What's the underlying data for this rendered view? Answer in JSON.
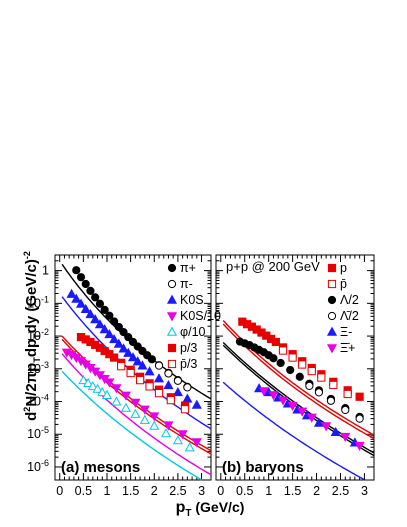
{
  "chart_data": [
    {
      "type": "scatter",
      "panel_label": "(a) mesons",
      "xlabel": "p_T (GeV/c)",
      "ylabel": "d²N/2πp_T dp_T dy  (GeV/c)^-2",
      "xlim": [
        -0.1,
        3.2
      ],
      "ylim": [
        4e-07,
        3
      ],
      "log_y": true,
      "x_ticks": [
        "0",
        "0.5",
        "1",
        "1.5",
        "2",
        "2.5",
        "3"
      ],
      "y_ticks": [
        "1",
        "10^-1",
        "10^-2",
        "10^-3",
        "10^-4",
        "10^-5",
        "10^-6"
      ],
      "legend_position": "top-right",
      "series": [
        {
          "name": "π+",
          "marker": "circle",
          "filled": true,
          "color": "#000000",
          "curve": {
            "A": 2.0,
            "T": 0.2,
            "n": 10.5
          },
          "x": [
            0.35,
            0.45,
            0.55,
            0.65,
            0.75,
            0.85,
            0.95,
            1.05,
            1.15,
            1.25,
            1.35,
            1.45,
            1.55,
            1.65,
            1.75,
            1.85,
            1.95,
            2.1,
            2.3,
            2.5,
            2.7
          ],
          "y": [
            1.03,
            0.63,
            0.39,
            0.24,
            0.152,
            0.097,
            0.063,
            0.042,
            0.028,
            0.019,
            0.0132,
            0.0093,
            0.0066,
            0.0048,
            0.0035,
            0.0026,
            0.00195,
            0.00128,
            0.00075,
            0.00045,
            0.00028
          ]
        },
        {
          "name": "π-",
          "marker": "circle",
          "filled": false,
          "color": "#000000",
          "curve": null,
          "x": [
            2.1,
            2.3,
            2.5,
            2.7
          ],
          "y": [
            0.00125,
            0.00072,
            0.00043,
            0.00027
          ]
        },
        {
          "name": "K0S",
          "marker": "triangle-up",
          "filled": true,
          "color": "#1a1aff",
          "curve": {
            "A": 0.2,
            "T": 0.22,
            "n": 12
          },
          "x": [
            0.25,
            0.35,
            0.45,
            0.55,
            0.65,
            0.75,
            0.85,
            0.95,
            1.05,
            1.15,
            1.25,
            1.35,
            1.45,
            1.55,
            1.65,
            1.75,
            1.9,
            2.1,
            2.3,
            2.5,
            2.7,
            2.9
          ],
          "y": [
            0.19,
            0.135,
            0.095,
            0.066,
            0.046,
            0.032,
            0.0224,
            0.0158,
            0.0112,
            0.0079,
            0.0057,
            0.0041,
            0.003,
            0.0022,
            0.00165,
            0.00124,
            0.00082,
            0.0005,
            0.00031,
            0.00019,
            0.00012,
            7.8e-05
          ]
        },
        {
          "name": "K0S/10",
          "marker": "triangle-down",
          "filled": true,
          "color": "#e600e6",
          "curve": {
            "A": 0.0035,
            "T": 0.25,
            "n": 12
          },
          "x": [
            0.15,
            0.25,
            0.35,
            0.45,
            0.55,
            0.65,
            0.75,
            0.85,
            0.95,
            1.05,
            1.2,
            1.4,
            1.6,
            1.8,
            2.0,
            2.3,
            2.6,
            2.9
          ],
          "y": [
            0.0032,
            0.0027,
            0.0022,
            0.00175,
            0.00138,
            0.00108,
            0.00084,
            0.00065,
            0.0005,
            0.00039,
            0.00026,
            0.000155,
            9.4e-05,
            5.8e-05,
            3.6e-05,
            1.9e-05,
            1.02e-05,
            5.8e-06
          ]
        },
        {
          "name": "φ/10",
          "marker": "triangle-up",
          "filled": false,
          "color": "#00c8e6",
          "curve": {
            "A": 0.001,
            "T": 0.28,
            "n": 13
          },
          "x": [
            0.5,
            0.6,
            0.7,
            0.8,
            0.9,
            1.0,
            1.2,
            1.4,
            1.6,
            1.8,
            2.0,
            2.25,
            2.5,
            2.75
          ],
          "y": [
            0.00044,
            0.00036,
            0.00029,
            0.00024,
            0.00019,
            0.000155,
            9.8e-05,
            6.3e-05,
            4.1e-05,
            2.7e-05,
            1.78e-05,
            1.05e-05,
            6.4e-06,
            3.9e-06
          ]
        },
        {
          "name": "p/3",
          "marker": "square",
          "filled": true,
          "color": "#e60000",
          "curve": {
            "A": 0.012,
            "T": 0.27,
            "n": 12
          },
          "x": [
            0.45,
            0.55,
            0.65,
            0.75,
            0.85,
            0.95,
            1.05,
            1.15,
            1.3,
            1.5,
            1.7,
            1.9,
            2.1,
            2.35,
            2.65
          ],
          "y": [
            0.0093,
            0.0079,
            0.0066,
            0.0054,
            0.0044,
            0.0035,
            0.0028,
            0.0022,
            0.00152,
            0.00093,
            0.00057,
            0.00036,
            0.00023,
            0.000135,
            7.5e-05
          ]
        },
        {
          "name": "p̄/3",
          "marker": "square",
          "filled": false,
          "color": "#e60000",
          "curve": {
            "A": 0.0095,
            "T": 0.27,
            "n": 12
          },
          "x": [
            1.3,
            1.5,
            1.7,
            1.9,
            2.1,
            2.35,
            2.65
          ],
          "y": [
            0.0012,
            0.00074,
            0.00045,
            0.00029,
            0.00018,
            0.00011,
            5.8e-05
          ]
        }
      ]
    },
    {
      "type": "scatter",
      "panel_label": "(b) baryons",
      "annotation": "p+p @ 200 GeV",
      "xlabel": "p_T (GeV/c)",
      "xlim": [
        -0.1,
        3.2
      ],
      "ylim": [
        4e-07,
        3
      ],
      "log_y": true,
      "x_ticks": [
        "0",
        "0.5",
        "1",
        "1.5",
        "2",
        "2.5",
        "3"
      ],
      "legend_position": "top-right",
      "series": [
        {
          "name": "p",
          "marker": "square",
          "filled": true,
          "color": "#e60000",
          "curve": {
            "A": 0.036,
            "T": 0.27,
            "n": 12
          },
          "x": [
            0.45,
            0.55,
            0.65,
            0.75,
            0.85,
            0.95,
            1.05,
            1.15,
            1.3,
            1.5,
            1.7,
            1.9,
            2.1,
            2.35,
            2.65,
            2.9
          ],
          "y": [
            0.0275,
            0.023,
            0.0193,
            0.0158,
            0.0128,
            0.0103,
            0.0082,
            0.0066,
            0.0045,
            0.0028,
            0.0017,
            0.00106,
            0.00068,
            0.0004,
            0.00022,
            0.00014
          ]
        },
        {
          "name": "p̄",
          "marker": "square",
          "filled": false,
          "color": "#e60000",
          "curve": {
            "A": 0.028,
            "T": 0.27,
            "n": 12
          },
          "x": [
            1.3,
            1.5,
            1.7,
            1.9,
            2.1,
            2.35,
            2.65
          ],
          "y": [
            0.0036,
            0.0022,
            0.00135,
            0.00085,
            0.00054,
            0.00032,
            0.00017
          ]
        },
        {
          "name": "Λ/2",
          "marker": "circle",
          "filled": true,
          "color": "#000000",
          "curve": {
            "A": 0.0075,
            "T": 0.3,
            "n": 14
          },
          "x": [
            0.4,
            0.5,
            0.6,
            0.7,
            0.8,
            0.9,
            1.0,
            1.1,
            1.25,
            1.45,
            1.65,
            1.85,
            2.05,
            2.3,
            2.6,
            2.9
          ],
          "y": [
            0.0068,
            0.006,
            0.0053,
            0.0045,
            0.0038,
            0.0032,
            0.0026,
            0.0021,
            0.0015,
            0.00092,
            0.00057,
            0.00035,
            0.00022,
            0.00012,
            6.3e-05,
            3.4e-05
          ]
        },
        {
          "name": "Λ̄/2",
          "marker": "circle",
          "filled": false,
          "color": "#000000",
          "curve": {
            "A": 0.0062,
            "T": 0.3,
            "n": 14
          },
          "x": [
            1.85,
            2.05,
            2.3,
            2.6,
            2.9
          ],
          "y": [
            0.0003,
            0.00019,
            0.000105,
            5.5e-05,
            3e-05
          ]
        },
        {
          "name": "Ξ-",
          "marker": "triangle-up",
          "filled": true,
          "color": "#1a1aff",
          "curve": {
            "A": 0.00045,
            "T": 0.33,
            "n": 14
          },
          "x": [
            0.8,
            1.0,
            1.2,
            1.4,
            1.6,
            1.8,
            2.05,
            2.4,
            2.8
          ],
          "y": [
            0.00025,
            0.00019,
            0.00013,
            8.5e-05,
            5.6e-05,
            3.7e-05,
            2.2e-05,
            1.15e-05,
            5.5e-06
          ]
        },
        {
          "name": "Ξ̄+",
          "marker": "triangle-down",
          "filled": true,
          "color": "#e600e6",
          "curve": null,
          "x": [
            0.9,
            1.1,
            1.3,
            1.5,
            1.7,
            1.9,
            2.2,
            2.6,
            2.9
          ],
          "y": [
            0.00021,
            0.00016,
            0.00011,
            7.5e-05,
            5e-05,
            3.3e-05,
            1.8e-05,
            8.5e-06,
            4.5e-06
          ]
        }
      ]
    }
  ]
}
